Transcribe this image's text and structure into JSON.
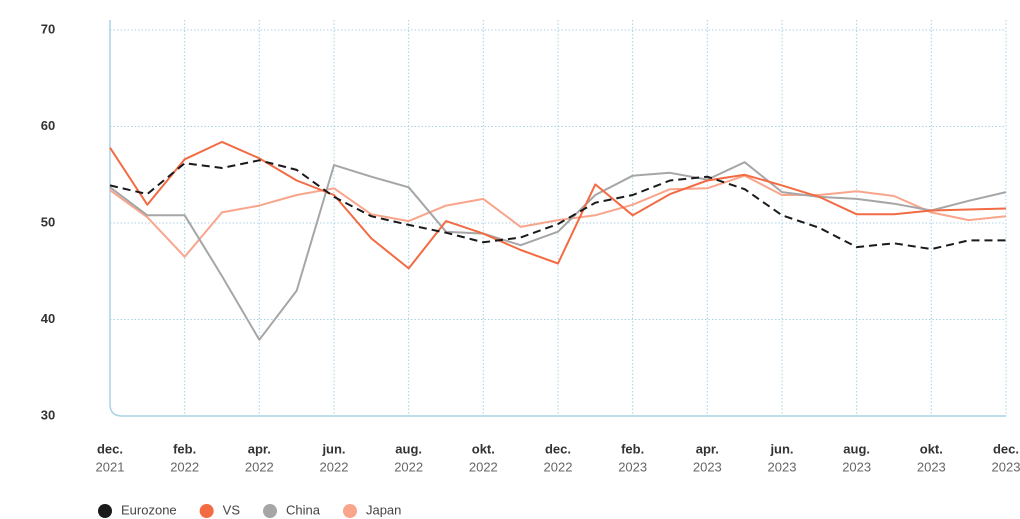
{
  "chart_data": {
    "type": "line",
    "categories": [
      {
        "month": "dec.",
        "year": "2021"
      },
      null,
      {
        "month": "feb.",
        "year": "2022"
      },
      null,
      {
        "month": "apr.",
        "year": "2022"
      },
      null,
      {
        "month": "jun.",
        "year": "2022"
      },
      null,
      {
        "month": "aug.",
        "year": "2022"
      },
      null,
      {
        "month": "okt.",
        "year": "2022"
      },
      null,
      {
        "month": "dec.",
        "year": "2022"
      },
      null,
      {
        "month": "feb.",
        "year": "2023"
      },
      null,
      {
        "month": "apr.",
        "year": "2023"
      },
      null,
      {
        "month": "jun.",
        "year": "2023"
      },
      null,
      {
        "month": "aug.",
        "year": "2023"
      },
      null,
      {
        "month": "okt.",
        "year": "2023"
      },
      null,
      {
        "month": "dec.",
        "year": "2023"
      }
    ],
    "series": [
      {
        "name": "Eurozone",
        "color": "#1a1a1a",
        "dashed": true,
        "values": [
          53.9,
          53.0,
          56.2,
          55.7,
          56.5,
          55.5,
          52.7,
          50.7,
          49.8,
          49.0,
          48.0,
          48.5,
          49.9,
          52.1,
          52.9,
          54.4,
          54.8,
          53.5,
          50.8,
          49.5,
          47.5,
          47.9,
          47.3,
          48.2,
          48.2
        ]
      },
      {
        "name": "VS",
        "color": "#f26b43",
        "values": [
          57.8,
          51.9,
          56.6,
          58.4,
          56.7,
          54.4,
          52.9,
          48.4,
          45.3,
          50.2,
          48.9,
          47.2,
          45.8,
          54.0,
          50.8,
          53.0,
          54.4,
          55.0,
          53.9,
          52.7,
          50.9,
          50.9,
          51.3,
          51.4,
          51.5
        ]
      },
      {
        "name": "China",
        "color": "#a6a6a6",
        "values": [
          53.7,
          50.8,
          50.8,
          44.5,
          37.9,
          43.0,
          56.0,
          54.8,
          53.7,
          49.1,
          48.9,
          47.7,
          49.1,
          52.9,
          54.9,
          55.2,
          54.5,
          56.3,
          53.2,
          52.7,
          52.5,
          52.0,
          51.3,
          52.3,
          53.2
        ]
      },
      {
        "name": "Japan",
        "color": "#f9a58c",
        "values": [
          53.4,
          50.6,
          46.5,
          51.1,
          51.8,
          52.9,
          53.6,
          50.9,
          50.2,
          51.8,
          52.5,
          49.6,
          50.3,
          50.8,
          51.9,
          53.5,
          53.6,
          54.9,
          52.9,
          52.9,
          53.3,
          52.8,
          51.1,
          50.3,
          50.7
        ]
      }
    ],
    "ylim": [
      30,
      70
    ],
    "yticks": [
      30,
      40,
      50,
      60,
      70
    ],
    "grid": true,
    "legend": "bottom"
  }
}
